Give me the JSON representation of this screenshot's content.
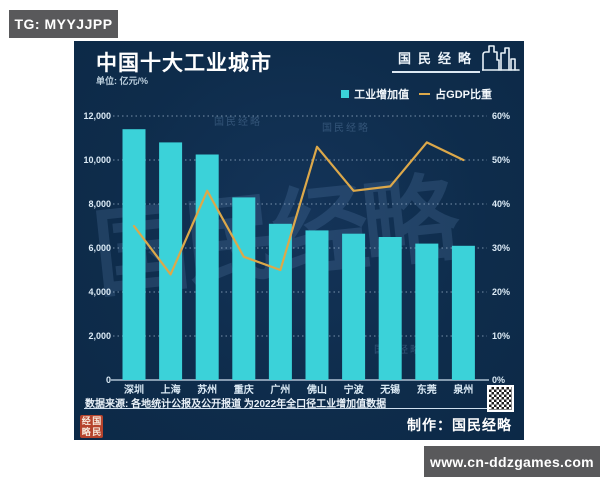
{
  "badge": {
    "text": "TG: MYYJJPP"
  },
  "site_bar": {
    "text": "www.cn-ddzgames.com"
  },
  "card": {
    "title": "中国十大工业城市",
    "unit": "单位: 亿元/%",
    "brand": {
      "name": "国民经略"
    },
    "watermarks": {
      "big": "国民经略",
      "small": "国民经略"
    },
    "footer": {
      "source": "数据来源: 各地统计公报及公开报道 为2022年全口径工业增加值数据",
      "credit": "制作：国民经略",
      "seal_chars": [
        "经",
        "国",
        "略",
        "民"
      ]
    }
  },
  "chart_data": {
    "type": "bar+line combo",
    "categories": [
      "深圳",
      "上海",
      "苏州",
      "重庆",
      "广州",
      "佛山",
      "宁波",
      "无锡",
      "东莞",
      "泉州"
    ],
    "series": [
      {
        "name": "工业增加值",
        "type": "bar",
        "unit": "亿元",
        "axis": "left",
        "color": "#3bd2d9",
        "values": [
          11400,
          10800,
          10250,
          8300,
          7100,
          6800,
          6650,
          6500,
          6200,
          6100
        ]
      },
      {
        "name": "占GDP比重",
        "type": "line",
        "unit": "%",
        "axis": "right",
        "color": "#dca84a",
        "values": [
          35,
          24,
          43,
          28,
          25,
          53,
          43,
          44,
          54,
          50
        ]
      }
    ],
    "left_axis": {
      "min": 0,
      "max": 12000,
      "step": 2000
    },
    "right_axis": {
      "min": 0,
      "max": 60,
      "step": 10,
      "suffix": "%"
    },
    "grid": "dotted horizontal gridlines, solid baseline",
    "legend_position": "top-right"
  }
}
